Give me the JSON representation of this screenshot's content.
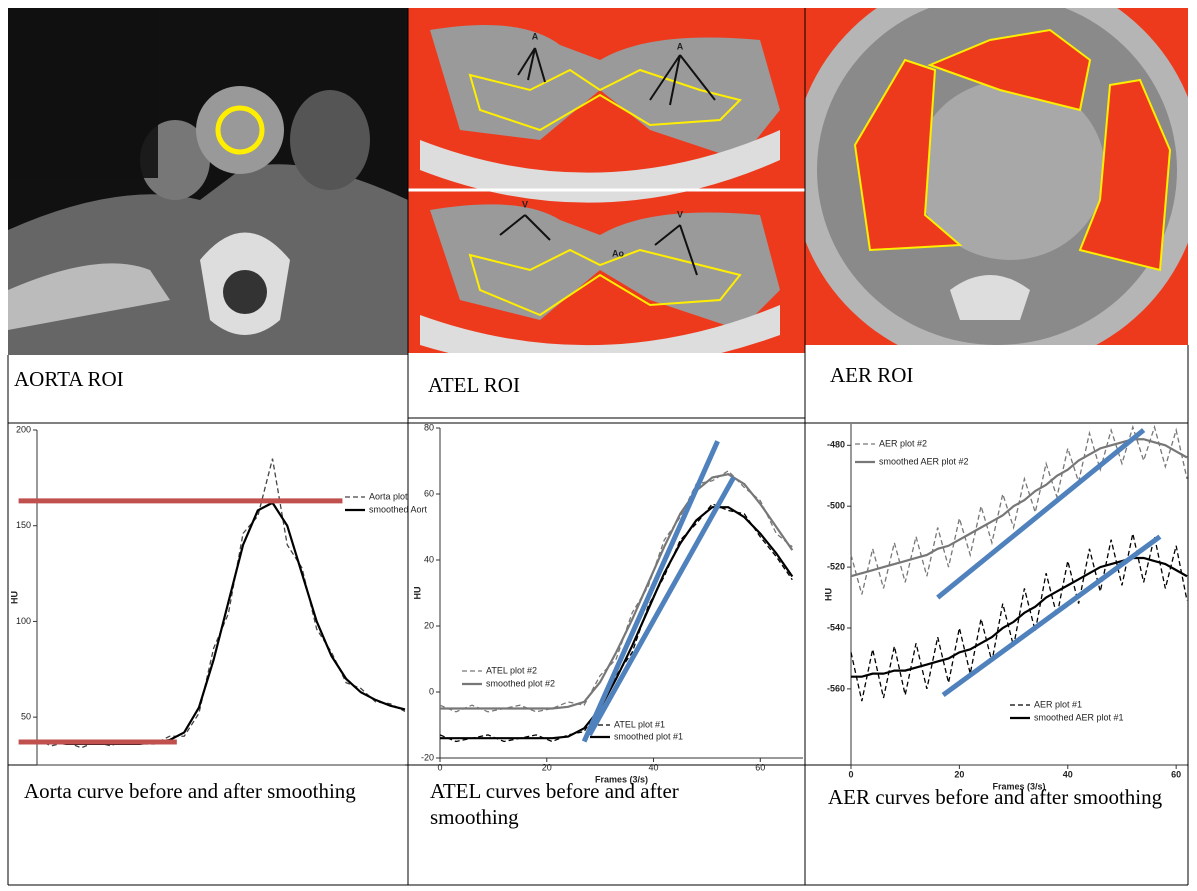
{
  "images": [
    {
      "caption": "AORTA ROI"
    },
    {
      "caption": "ATEL ROI",
      "labels": [
        "A",
        "A",
        "V",
        "V",
        "Ao"
      ]
    },
    {
      "caption": "AER ROI"
    }
  ],
  "chart_data": [
    {
      "type": "line",
      "caption": "Aorta curve before and after smoothing",
      "ylabel": "HU",
      "x": [
        0,
        4,
        8,
        12,
        16,
        20,
        24,
        28,
        32,
        36,
        40,
        44,
        48,
        52,
        56,
        60,
        64,
        68,
        72,
        76,
        80,
        84,
        88,
        92,
        96,
        100
      ],
      "xlim": [
        0,
        100
      ],
      "ylim": [
        25,
        200
      ],
      "yticks": [
        50,
        100,
        150,
        200
      ],
      "series": [
        {
          "name": "Aorta plot",
          "color": "#444444",
          "dash": true,
          "values": [
            38,
            35,
            37,
            34,
            37,
            35,
            38,
            36,
            36,
            40,
            40,
            52,
            86,
            104,
            146,
            155,
            185,
            140,
            128,
            96,
            84,
            68,
            65,
            58,
            57,
            53
          ]
        },
        {
          "name": "smoothed Aort",
          "color": "#000000",
          "dash": false,
          "values": [
            37,
            37,
            36,
            36,
            36,
            36,
            36,
            36,
            37,
            38,
            42,
            55,
            80,
            110,
            140,
            158,
            162,
            150,
            125,
            100,
            82,
            70,
            63,
            59,
            56,
            54
          ]
        }
      ],
      "reference_lines": [
        {
          "value": 163,
          "x": [
            -5,
            83
          ],
          "color": "#c0504d"
        },
        {
          "value": 37,
          "x": [
            -5,
            38
          ],
          "color": "#c0504d"
        }
      ]
    },
    {
      "type": "line",
      "caption": "ATEL curves before and after smoothing",
      "ylabel": "HU",
      "xlabel": "Frames (3/s)",
      "x": [
        0,
        3,
        6,
        9,
        12,
        15,
        18,
        21,
        24,
        27,
        30,
        33,
        36,
        39,
        42,
        45,
        48,
        51,
        54,
        57,
        60,
        63,
        66
      ],
      "xlim": [
        0,
        68
      ],
      "ylim": [
        -20,
        80
      ],
      "xticks": [
        0,
        20,
        40,
        60
      ],
      "yticks": [
        -20,
        0,
        20,
        40,
        60,
        80
      ],
      "series": [
        {
          "name": "ATEL plot #2",
          "color": "#777777",
          "dash": true,
          "values": [
            -4,
            -6,
            -4,
            -6,
            -5,
            -4,
            -6,
            -5,
            -3,
            -4,
            5,
            10,
            24,
            32,
            46,
            53,
            63,
            64,
            67,
            62,
            58,
            48,
            44
          ]
        },
        {
          "name": "smoothed plot #2",
          "color": "#777777",
          "dash": false,
          "values": [
            -5,
            -5,
            -5,
            -5,
            -5,
            -5,
            -5,
            -5,
            -4.5,
            -3,
            3,
            12,
            22,
            33,
            44,
            54,
            61,
            65,
            66,
            63,
            57,
            50,
            43
          ]
        },
        {
          "name": "ATEL plot #1",
          "color": "#000000",
          "dash": true,
          "values": [
            -13,
            -15,
            -14,
            -13,
            -15,
            -14,
            -13,
            -15,
            -13,
            -12,
            -4,
            5,
            12,
            26,
            35,
            46,
            51,
            57,
            55,
            54,
            47,
            41,
            34
          ]
        },
        {
          "name": "smoothed plot #1",
          "color": "#000000",
          "dash": false,
          "values": [
            -14,
            -14,
            -14,
            -14,
            -14,
            -14,
            -14,
            -14,
            -13.5,
            -11,
            -5,
            4,
            14,
            25,
            36,
            45,
            52,
            56,
            56,
            53,
            48,
            42,
            35
          ]
        }
      ],
      "trend_lines": [
        {
          "x": [
            27,
            52
          ],
          "y": [
            -15,
            76
          ],
          "color": "#4f81bd"
        },
        {
          "x": [
            28,
            55
          ],
          "y": [
            -13,
            65
          ],
          "color": "#4f81bd"
        }
      ]
    },
    {
      "type": "line",
      "caption": "AER curves before and after smoothing",
      "ylabel": "HU",
      "xlabel": "Frames (3/s)",
      "x": [
        0,
        2,
        4,
        6,
        8,
        10,
        12,
        14,
        16,
        18,
        20,
        22,
        24,
        26,
        28,
        30,
        32,
        34,
        36,
        38,
        40,
        42,
        44,
        46,
        48,
        50,
        52,
        54,
        56,
        58,
        60,
        62
      ],
      "xlim": [
        0,
        62
      ],
      "ylim": [
        -585,
        -473
      ],
      "xticks": [
        0,
        20,
        40,
        60
      ],
      "yticks": [
        -560,
        -540,
        -520,
        -500,
        -480
      ],
      "series": [
        {
          "name": "AER plot #2",
          "color": "#777777",
          "dash": true,
          "values": [
            -516,
            -529,
            -514,
            -527,
            -512,
            -525,
            -510,
            -523,
            -507,
            -520,
            -504,
            -516,
            -500,
            -512,
            -496,
            -507,
            -491,
            -502,
            -486,
            -497,
            -481,
            -492,
            -476,
            -488,
            -475,
            -486,
            -474,
            -485,
            -474,
            -487,
            -475,
            -491
          ]
        },
        {
          "name": "smoothed AER plot #2",
          "color": "#777777",
          "dash": false,
          "values": [
            -523,
            -522,
            -521,
            -520,
            -519,
            -518,
            -517,
            -516,
            -514,
            -513,
            -511,
            -509,
            -507,
            -505,
            -503,
            -500,
            -498,
            -495,
            -493,
            -490,
            -488,
            -485,
            -483,
            -481,
            -480,
            -479,
            -478,
            -478,
            -479,
            -480,
            -482,
            -484
          ]
        },
        {
          "name": "AER plot #1",
          "color": "#000000",
          "dash": true,
          "values": [
            -548,
            -564,
            -547,
            -563,
            -546,
            -562,
            -545,
            -560,
            -543,
            -558,
            -540,
            -555,
            -537,
            -551,
            -532,
            -546,
            -527,
            -541,
            -522,
            -536,
            -518,
            -532,
            -514,
            -528,
            -511,
            -526,
            -509,
            -525,
            -510,
            -527,
            -513,
            -531
          ]
        },
        {
          "name": "smoothed AER plot #1",
          "color": "#000000",
          "dash": false,
          "values": [
            -556,
            -556,
            -555,
            -555,
            -554,
            -554,
            -553,
            -552,
            -551,
            -550,
            -548,
            -547,
            -545,
            -543,
            -540,
            -538,
            -535,
            -533,
            -530,
            -528,
            -526,
            -524,
            -522,
            -520,
            -519,
            -518,
            -517,
            -517,
            -518,
            -519,
            -521,
            -523
          ]
        }
      ],
      "trend_lines": [
        {
          "x": [
            16,
            54
          ],
          "y": [
            -530,
            -475
          ],
          "color": "#4f81bd"
        },
        {
          "x": [
            17,
            57
          ],
          "y": [
            -562,
            -510
          ],
          "color": "#4f81bd"
        }
      ]
    }
  ]
}
